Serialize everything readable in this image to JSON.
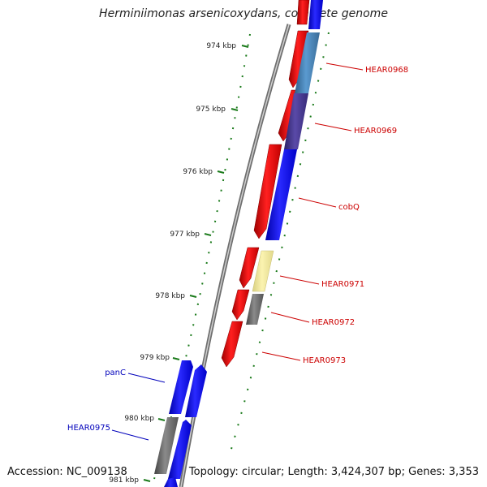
{
  "title": "Herminiimonas arsenicoxydans, complete genome",
  "footer": {
    "accession": "Accession: NC_009138",
    "summary": "Topology: circular; Length: 3,424,307 bp; Genes: 3,353"
  },
  "ruler": {
    "ticks": [
      "974 kbp",
      "975 kbp",
      "976 kbp",
      "977 kbp",
      "978 kbp",
      "979 kbp",
      "980 kbp",
      "981 kbp"
    ]
  },
  "gene_labels": [
    {
      "text": "HEAR0968",
      "color": "#cc0000"
    },
    {
      "text": "HEAR0969",
      "color": "#cc0000"
    },
    {
      "text": "cobQ",
      "color": "#cc0000"
    },
    {
      "text": "HEAR0971",
      "color": "#cc0000"
    },
    {
      "text": "HEAR0972",
      "color": "#cc0000"
    },
    {
      "text": "HEAR0973",
      "color": "#cc0000"
    },
    {
      "text": "panC",
      "color": "#0000bb"
    },
    {
      "text": "HEAR0975",
      "color": "#0000bb"
    }
  ],
  "colors": {
    "backbone": "#888888",
    "tick_green": "#1a7a1a",
    "red": "#ff0000",
    "blue": "#0000ff",
    "steel": "#4a86b8",
    "purple": "#4a3a8c",
    "yellow": "#f0e68c",
    "gray": "#666666"
  }
}
